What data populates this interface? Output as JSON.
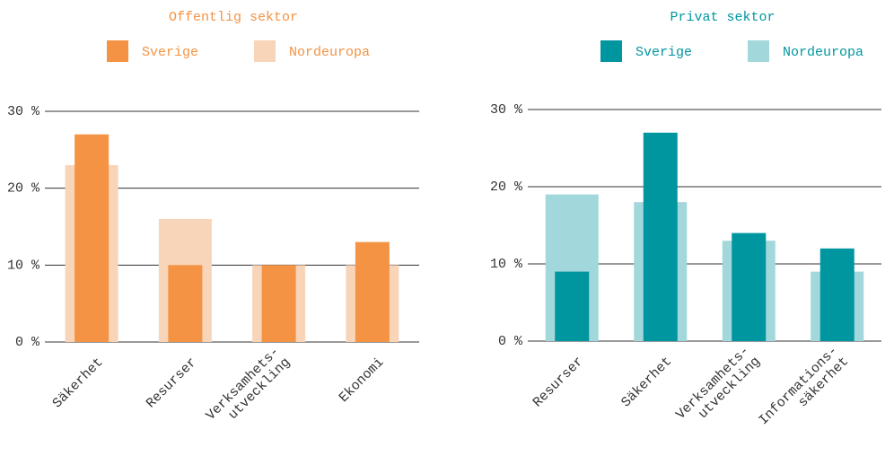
{
  "chart_data": [
    {
      "type": "bar",
      "title": "Offentlig sektor",
      "categories": [
        "Säkerhet",
        "Resurser",
        "Verksamhets-\nutveckling",
        "Ekonomi"
      ],
      "series": [
        {
          "name": "Sverige",
          "color": "#f39343",
          "values": [
            27,
            10,
            10,
            13
          ]
        },
        {
          "name": "Nordeuropa",
          "color": "#f8d4b8",
          "values": [
            23,
            16,
            10,
            10
          ]
        }
      ],
      "ylim": [
        0,
        30
      ],
      "yticks": [
        {
          "value": 0,
          "label": "0 %"
        },
        {
          "value": 10,
          "label": "10 %"
        },
        {
          "value": 20,
          "label": "20 %"
        },
        {
          "value": 30,
          "label": "30 %"
        }
      ],
      "grid": true
    },
    {
      "type": "bar",
      "title": "Privat sektor",
      "categories": [
        "Resurser",
        "Säkerhet",
        "Verksamhets-\nutveckling",
        "Informations-\nsäkerhet"
      ],
      "series": [
        {
          "name": "Sverige",
          "color": "#0096a0",
          "values": [
            9,
            27,
            14,
            12
          ]
        },
        {
          "name": "Nordeuropa",
          "color": "#a2d7db",
          "values": [
            19,
            18,
            13,
            9
          ]
        }
      ],
      "ylim": [
        0,
        30
      ],
      "yticks": [
        {
          "value": 0,
          "label": "0 %"
        },
        {
          "value": 10,
          "label": "10 %"
        },
        {
          "value": 20,
          "label": "20 %"
        },
        {
          "value": 30,
          "label": "30 %"
        }
      ],
      "grid": true
    }
  ]
}
